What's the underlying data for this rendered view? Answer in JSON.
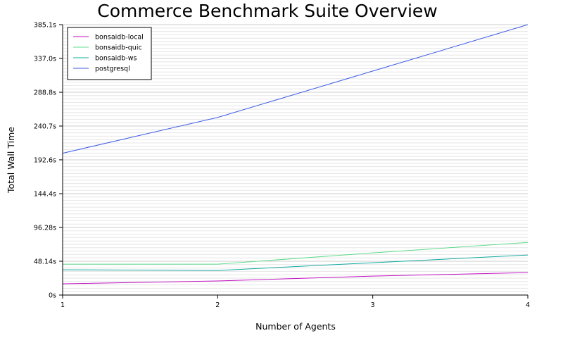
{
  "chart_data": {
    "type": "line",
    "title": "Commerce Benchmark Suite Overview",
    "xlabel": "Number of Agents",
    "ylabel": "Total Wall Time",
    "x": [
      1,
      2,
      3,
      4
    ],
    "x_ticks": [
      "1",
      "2",
      "3",
      "4"
    ],
    "xlim": [
      1,
      4
    ],
    "y_ticks": [
      {
        "value": 0,
        "label": "0s"
      },
      {
        "value": 48.14,
        "label": "48.14s"
      },
      {
        "value": 96.28,
        "label": "96.28s"
      },
      {
        "value": 144.4,
        "label": "144.4s"
      },
      {
        "value": 192.6,
        "label": "192.6s"
      },
      {
        "value": 240.7,
        "label": "240.7s"
      },
      {
        "value": 288.8,
        "label": "288.8s"
      },
      {
        "value": 337.0,
        "label": "337.0s"
      },
      {
        "value": 385.1,
        "label": "385.1s"
      }
    ],
    "ylim": [
      0,
      385.1
    ],
    "grid": true,
    "legend_position": "top-left",
    "series": [
      {
        "name": "bonsaidb-local",
        "color": "#c014c0",
        "values": [
          16,
          20,
          27,
          32
        ]
      },
      {
        "name": "bonsaidb-quic",
        "color": "#5fdc8c",
        "values": [
          44,
          44,
          60,
          75
        ]
      },
      {
        "name": "bonsaidb-ws",
        "color": "#14a8a0",
        "values": [
          36,
          35,
          46,
          57
        ]
      },
      {
        "name": "postgresql",
        "color": "#3c5ae6",
        "values": [
          202,
          253,
          319,
          385.1
        ]
      }
    ]
  }
}
